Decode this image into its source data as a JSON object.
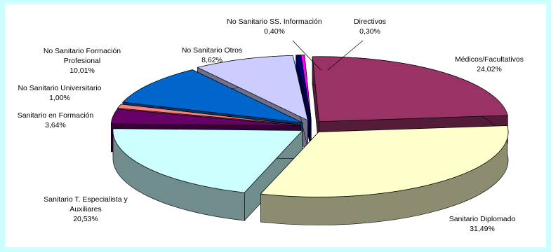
{
  "chart_data": {
    "type": "pie",
    "style": "3d-exploded",
    "slices": [
      {
        "label": "Médicos/Facultativos",
        "value": 24.02,
        "display": "24,02%",
        "color": "#993366"
      },
      {
        "label": "Sanitario Diplomado",
        "value": 31.49,
        "display": "31,49%",
        "color": "#ffffcc"
      },
      {
        "label": "Sanitario T. Especialista y Auxiliares",
        "label_lines": [
          "Sanitario T. Especialista y",
          "Auxiliares"
        ],
        "value": 20.53,
        "display": "20,53%",
        "color": "#ccffff"
      },
      {
        "label": "Sanitario en Formación",
        "value": 3.64,
        "display": "3,64%",
        "color": "#660066"
      },
      {
        "label": "No Sanitario Universitario",
        "value": 1.0,
        "display": "1,00%",
        "color": "#ff8080"
      },
      {
        "label": "No Sanitario Formación Profesional",
        "label_lines": [
          "No Sanitario Formación",
          "Profesional"
        ],
        "value": 10.01,
        "display": "10,01%",
        "color": "#0066cc"
      },
      {
        "label": "No Sanitario Otros",
        "value": 8.62,
        "display": "8,62%",
        "color": "#ccccff"
      },
      {
        "label": "No Sanitario SS. Información",
        "value": 0.4,
        "display": "0,40%",
        "color": "#000080"
      },
      {
        "label": "Directivos",
        "value": 0.3,
        "display": "0,30%",
        "color": "#ff00ff"
      }
    ]
  }
}
